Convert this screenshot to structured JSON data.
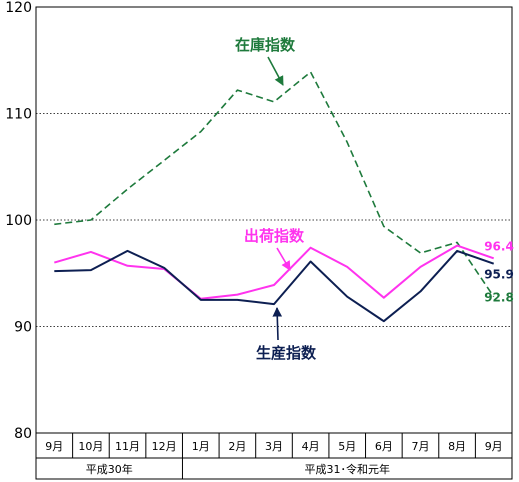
{
  "chart_data": {
    "type": "line",
    "title": "",
    "xlabel": "",
    "ylabel": "",
    "ylim": [
      80,
      120
    ],
    "yticks": [
      "80",
      "90",
      "100",
      "110",
      "120"
    ],
    "grid": "horizontal dotted",
    "categories": [
      "9月",
      "10月",
      "11月",
      "12月",
      "1月",
      "2月",
      "3月",
      "4月",
      "5月",
      "6月",
      "7月",
      "8月",
      "9月"
    ],
    "era_groups": [
      {
        "label": "平成30年",
        "span": [
          0,
          3
        ]
      },
      {
        "label": "平成31･令和元年",
        "span": [
          4,
          12
        ]
      }
    ],
    "series": [
      {
        "name": "在庫指数",
        "color": "#1e7a3c",
        "style": "dashed",
        "values": [
          99.6,
          100.0,
          102.9,
          105.6,
          108.3,
          112.2,
          111.1,
          113.9,
          107.3,
          99.4,
          96.9,
          97.9,
          92.8
        ],
        "end_label": "92.8",
        "callout": "在庫指数"
      },
      {
        "name": "出荷指数",
        "color": "#ff33ee",
        "style": "solid",
        "values": [
          96.0,
          97.0,
          95.7,
          95.4,
          92.6,
          93.0,
          93.9,
          97.4,
          95.6,
          92.7,
          95.6,
          97.6,
          96.4
        ],
        "end_label": "96.4",
        "callout": "出荷指数"
      },
      {
        "name": "生産指数",
        "color": "#0d1f52",
        "style": "solid",
        "values": [
          95.2,
          95.3,
          97.1,
          95.5,
          92.5,
          92.5,
          92.1,
          96.1,
          92.8,
          90.5,
          93.3,
          97.1,
          95.9
        ],
        "end_label": "95.9",
        "callout": "生産指数"
      }
    ]
  }
}
